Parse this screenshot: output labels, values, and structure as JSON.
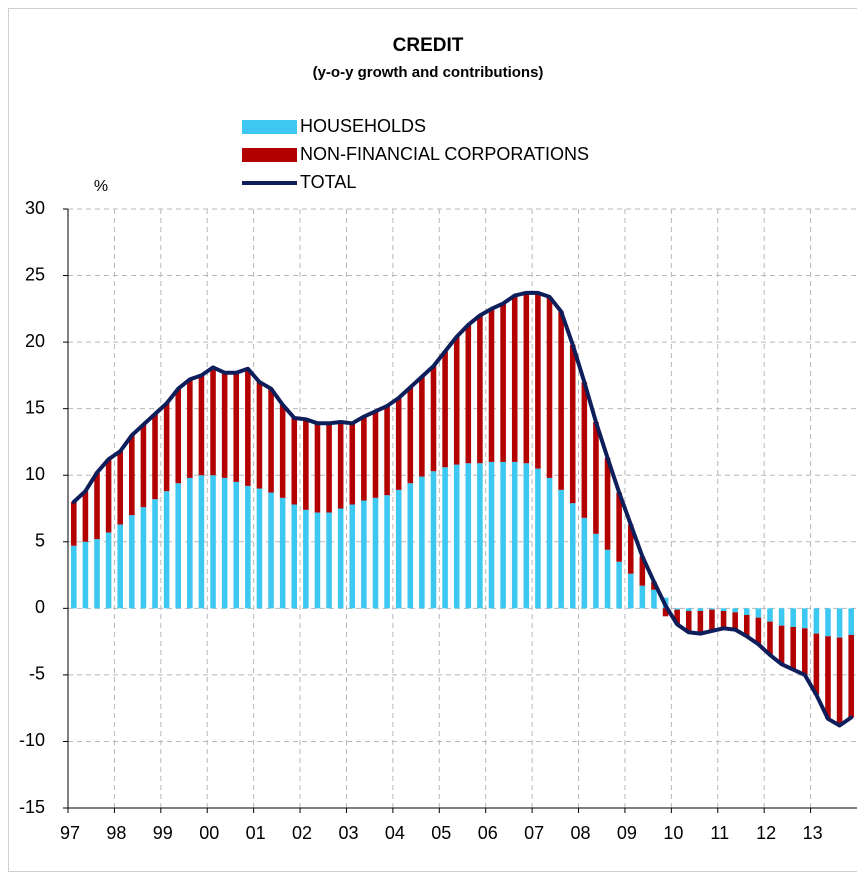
{
  "chart_data": {
    "type": "bar",
    "title": "CREDIT",
    "subtitle": "(y-o-y growth and contributions)",
    "y_unit": "%",
    "categories": [
      "97",
      null,
      null,
      null,
      "98",
      null,
      null,
      null,
      "99",
      null,
      null,
      null,
      "00",
      null,
      null,
      null,
      "01",
      null,
      null,
      null,
      "02",
      null,
      null,
      null,
      "03",
      null,
      null,
      null,
      "04",
      null,
      null,
      null,
      "05",
      null,
      null,
      null,
      "06",
      null,
      null,
      null,
      "07",
      null,
      null,
      null,
      "08",
      null,
      null,
      null,
      "09",
      null,
      null,
      null,
      "10",
      null,
      null,
      null,
      "11",
      null,
      null,
      null,
      "12",
      null,
      null,
      null,
      "13",
      null,
      null,
      null
    ],
    "series": [
      {
        "name": "HOUSEHOLDS",
        "type": "bar",
        "color": "#3cc8f0",
        "values": [
          4.7,
          5.0,
          5.2,
          5.7,
          6.3,
          7.0,
          7.6,
          8.2,
          8.8,
          9.4,
          9.8,
          10.0,
          10.0,
          9.8,
          9.5,
          9.2,
          9.0,
          8.7,
          8.3,
          7.8,
          7.4,
          7.2,
          7.2,
          7.5,
          7.8,
          8.1,
          8.3,
          8.5,
          8.9,
          9.4,
          9.9,
          10.3,
          10.6,
          10.8,
          10.9,
          10.9,
          11.0,
          11.0,
          11.0,
          10.9,
          10.5,
          9.8,
          8.9,
          7.9,
          6.8,
          5.6,
          4.4,
          3.5,
          2.6,
          1.7,
          1.4,
          0.8,
          -0.1,
          -0.2,
          -0.2,
          -0.1,
          -0.2,
          -0.3,
          -0.5,
          -0.7,
          -1.0,
          -1.3,
          -1.4,
          -1.5,
          -1.9,
          -2.1,
          -2.2,
          -2.0
        ]
      },
      {
        "name": "NON-FINANCIAL CORPORATIONS",
        "type": "bar",
        "color": "#b30000",
        "values": [
          3.3,
          3.8,
          5.0,
          5.5,
          5.5,
          6.0,
          6.2,
          6.4,
          6.6,
          7.1,
          7.4,
          7.5,
          8.1,
          7.9,
          8.2,
          8.8,
          8.0,
          7.8,
          7.0,
          6.5,
          6.8,
          6.7,
          6.7,
          6.5,
          6.1,
          6.3,
          6.5,
          6.7,
          6.9,
          7.2,
          7.5,
          7.9,
          8.7,
          9.6,
          10.4,
          11.1,
          11.5,
          11.9,
          12.5,
          12.8,
          13.2,
          13.6,
          13.4,
          11.9,
          10.2,
          8.4,
          6.9,
          5.2,
          3.7,
          2.2,
          0.6,
          -0.6,
          -1.1,
          -1.6,
          -1.7,
          -1.6,
          -1.3,
          -1.3,
          -1.6,
          -2.0,
          -2.5,
          -2.9,
          -3.2,
          -3.5,
          -4.6,
          -6.2,
          -6.6,
          -6.2
        ]
      },
      {
        "name": "TOTAL",
        "type": "line",
        "color": "#0d1e5a",
        "values": [
          8.0,
          8.8,
          10.2,
          11.2,
          11.8,
          13.0,
          13.8,
          14.6,
          15.4,
          16.5,
          17.2,
          17.5,
          18.1,
          17.7,
          17.7,
          18.0,
          17.0,
          16.5,
          15.3,
          14.3,
          14.2,
          13.9,
          13.9,
          14.0,
          13.9,
          14.4,
          14.8,
          15.2,
          15.8,
          16.6,
          17.4,
          18.2,
          19.3,
          20.4,
          21.3,
          22.0,
          22.5,
          22.9,
          23.5,
          23.7,
          23.7,
          23.4,
          22.3,
          19.8,
          17.0,
          14.0,
          11.3,
          8.7,
          6.3,
          3.9,
          2.0,
          0.2,
          -1.2,
          -1.8,
          -1.9,
          -1.7,
          -1.5,
          -1.6,
          -2.1,
          -2.7,
          -3.5,
          -4.2,
          -4.6,
          -5.0,
          -6.5,
          -8.3,
          -8.8,
          -8.2
        ]
      }
    ],
    "ylim": [
      -15,
      30
    ],
    "yticks": [
      -15,
      -10,
      -5,
      0,
      5,
      10,
      15,
      20,
      25,
      30
    ],
    "grid": true,
    "legend": "top"
  }
}
